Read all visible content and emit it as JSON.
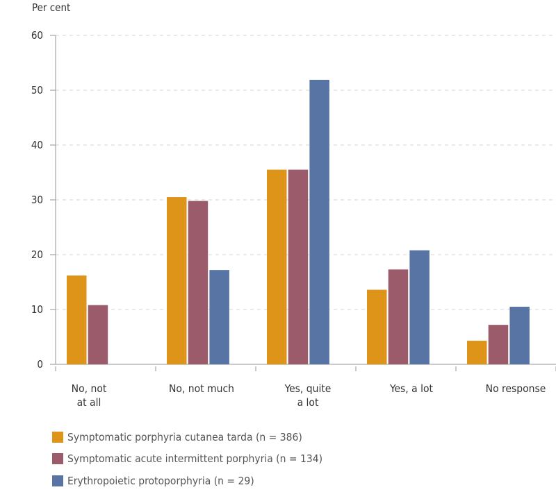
{
  "chart_data": {
    "type": "bar",
    "ylabel": "Per cent",
    "ylim": [
      0,
      60
    ],
    "yticks": [
      0,
      10,
      20,
      30,
      40,
      50,
      60
    ],
    "grid": "horizontal dashed",
    "legend_placement": "bottom-left",
    "categories": [
      "No, not\nat all",
      "No, not much",
      "Yes, quite\na lot",
      "Yes, a lot",
      "No response"
    ],
    "series": [
      {
        "name": "Symptomatic porphyria cutanea tarda (n = 386)",
        "color": "#DE9419",
        "values": [
          16.2,
          30.5,
          35.5,
          13.6,
          4.3
        ]
      },
      {
        "name": "Symptomatic acute intermittent porphyria (n = 134)",
        "color": "#9C5B6A",
        "values": [
          10.8,
          29.8,
          35.5,
          17.3,
          7.2
        ]
      },
      {
        "name": "Erythropoietic protoporphyria (n = 29)",
        "color": "#5874A5",
        "values": [
          0,
          17.2,
          51.9,
          20.8,
          10.5
        ]
      }
    ]
  }
}
